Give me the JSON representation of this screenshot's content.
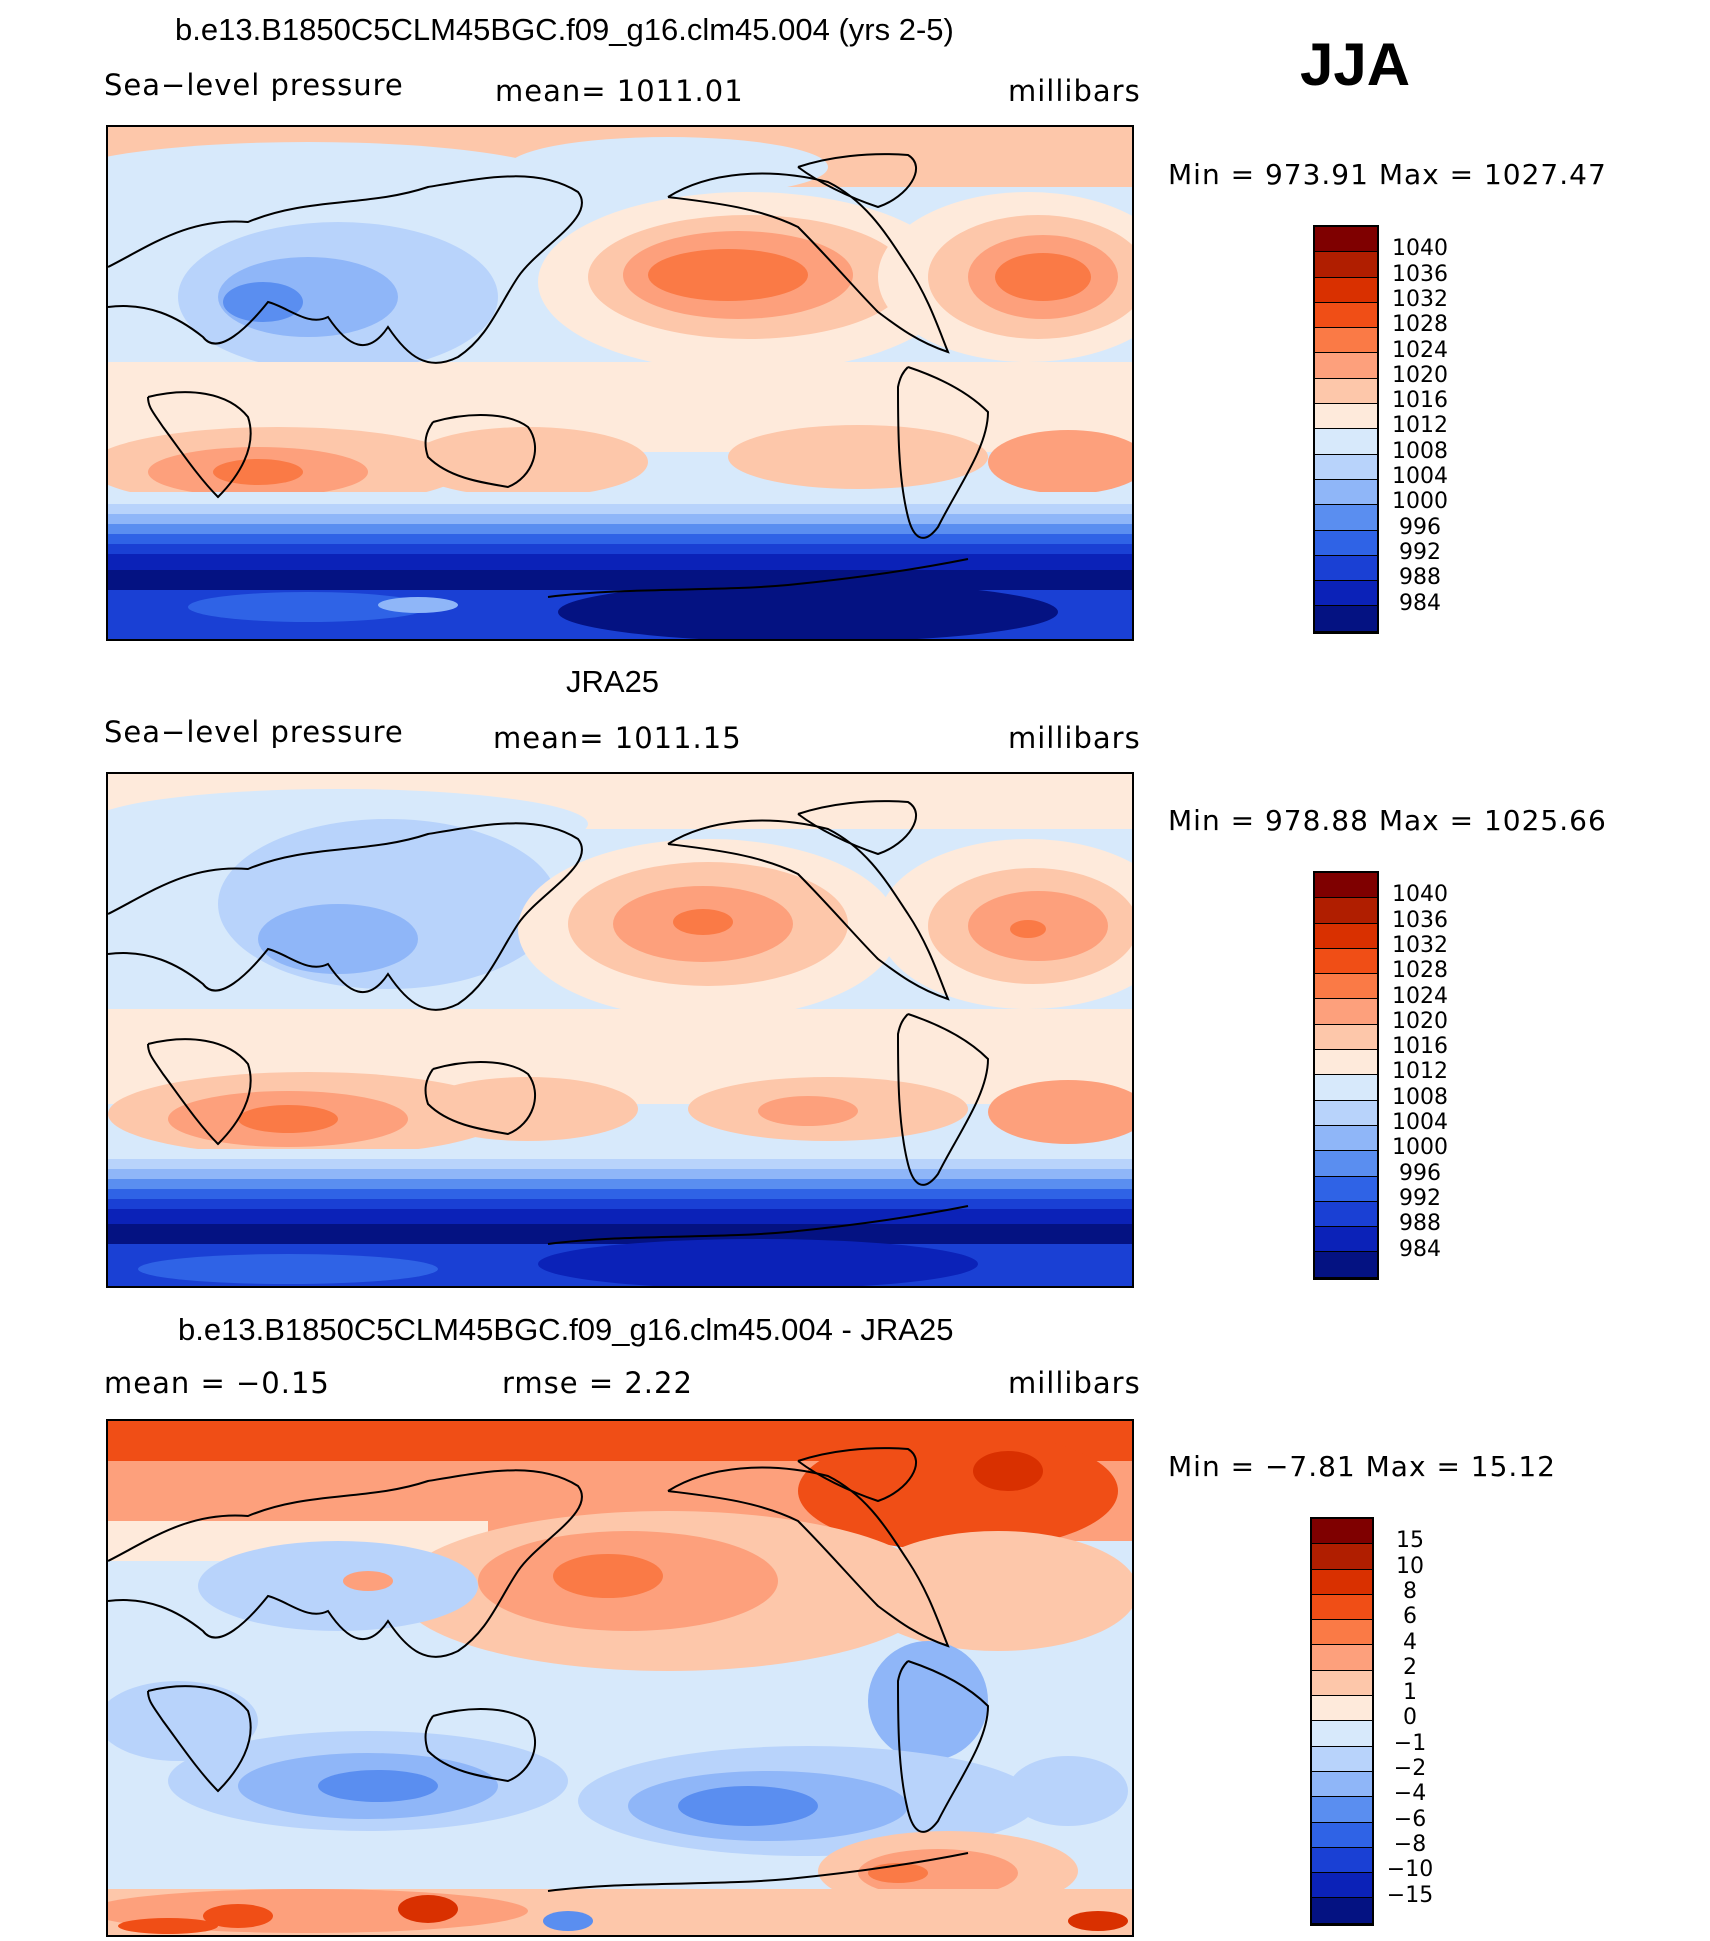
{
  "season": "JJA",
  "panels": [
    {
      "title": "b.e13.B1850C5CLM45BGC.f09_g16.clm45.004 (yrs 2-5)",
      "variable": "Sea−level pressure",
      "stat": "mean=  1011.01",
      "units": "millibars",
      "minmax": "Min  =  973.91  Max  =  1027.47",
      "levels": [
        "1040",
        "1036",
        "1032",
        "1028",
        "1024",
        "1020",
        "1016",
        "1012",
        "1008",
        "1004",
        "1000",
        "996",
        "992",
        "988",
        "984"
      ],
      "colors": [
        "#7f0000",
        "#b01e00",
        "#d93000",
        "#f04e16",
        "#fa7a46",
        "#fda07c",
        "#fdc7aa",
        "#feeadb",
        "#d7e9fb",
        "#b8d3fb",
        "#8fb6f8",
        "#5a8ef0",
        "#2f63e6",
        "#1a40d4",
        "#0b22b8",
        "#041282"
      ]
    },
    {
      "title": "JRA25",
      "variable": "Sea−level pressure",
      "stat": "mean=  1011.15",
      "units": "millibars",
      "minmax": "Min  =  978.88  Max  =  1025.66",
      "levels": [
        "1040",
        "1036",
        "1032",
        "1028",
        "1024",
        "1020",
        "1016",
        "1012",
        "1008",
        "1004",
        "1000",
        "996",
        "992",
        "988",
        "984"
      ],
      "colors": [
        "#7f0000",
        "#b01e00",
        "#d93000",
        "#f04e16",
        "#fa7a46",
        "#fda07c",
        "#fdc7aa",
        "#feeadb",
        "#d7e9fb",
        "#b8d3fb",
        "#8fb6f8",
        "#5a8ef0",
        "#2f63e6",
        "#1a40d4",
        "#0b22b8",
        "#041282"
      ]
    },
    {
      "title": "b.e13.B1850C5CLM45BGC.f09_g16.clm45.004 - JRA25",
      "variable": "mean  =    −0.15",
      "stat": "rmse  =      2.22",
      "units": "millibars",
      "minmax": "Min  =    −7.81  Max  =    15.12",
      "levels": [
        "15",
        "10",
        "8",
        "6",
        "4",
        "2",
        "1",
        "0",
        "−1",
        "−2",
        "−4",
        "−6",
        "−8",
        "−10",
        "−15"
      ],
      "colors": [
        "#7f0000",
        "#b01e00",
        "#d93000",
        "#f04e16",
        "#fa7a46",
        "#fda07c",
        "#fdc7aa",
        "#feeadb",
        "#d7e9fb",
        "#b8d3fb",
        "#8fb6f8",
        "#5a8ef0",
        "#2f63e6",
        "#1a40d4",
        "#0b22b8",
        "#041282"
      ]
    }
  ]
}
